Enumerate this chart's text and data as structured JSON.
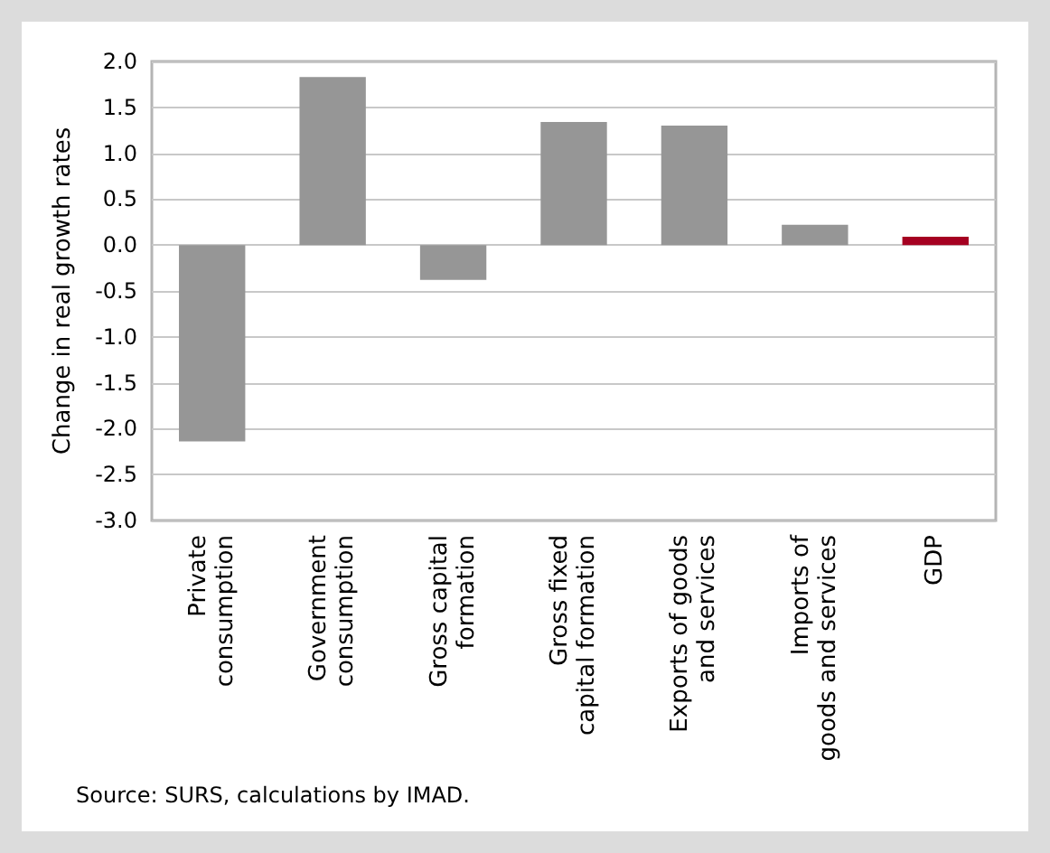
{
  "chart_data": {
    "type": "bar",
    "ylabel": "Change in real growth rates",
    "categories": [
      "Private\nconsumption",
      "Government\nconsumption",
      "Gross capital\nformation",
      "Gross fixed\ncapital formation",
      "Exports of goods\nand services",
      "Imports of\ngoods and services",
      "GDP"
    ],
    "values": [
      -2.14,
      1.83,
      -0.38,
      1.34,
      1.3,
      0.22,
      0.09
    ],
    "colors": [
      "#969696",
      "#969696",
      "#969696",
      "#969696",
      "#969696",
      "#969696",
      "#a50021"
    ],
    "ylim": [
      -3,
      2
    ],
    "yticks": [
      {
        "value": -3,
        "label": "-3.0"
      },
      {
        "value": -2.5,
        "label": "-2.5"
      },
      {
        "value": -2,
        "label": "-2.0"
      },
      {
        "value": -1.5,
        "label": "-1.5"
      },
      {
        "value": -1,
        "label": "-1.0"
      },
      {
        "value": -0.5,
        "label": "-0.5"
      },
      {
        "value": 0,
        "label": "0.0"
      },
      {
        "value": 0.5,
        "label": "0.5"
      },
      {
        "value": 1,
        "label": "1.0"
      },
      {
        "value": 1.5,
        "label": "1.5"
      },
      {
        "value": 2,
        "label": "2.0"
      }
    ],
    "grid": true,
    "annotations": [
      "Source: SURS, calculations by IMAD."
    ]
  }
}
